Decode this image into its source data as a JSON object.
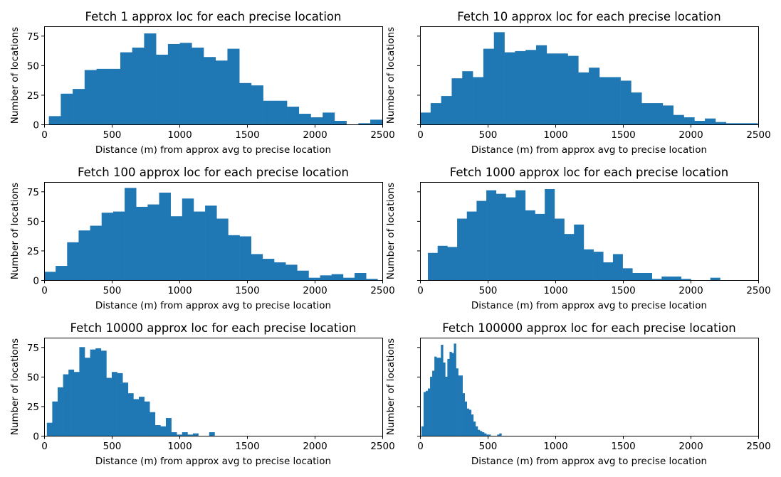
{
  "figure": {
    "bar_color": "#1f77b4",
    "background": "#ffffff"
  },
  "chart_data": [
    {
      "type": "bar",
      "title": "Fetch 1 approx loc for each precise location",
      "xlabel": "Distance (m) from approx avg to precise location",
      "ylabel": "Number of locations",
      "xlim": [
        0,
        2500
      ],
      "ylim": [
        0,
        83
      ],
      "xticks": [
        "0",
        "500",
        "1000",
        "1500",
        "2000",
        "2500"
      ],
      "yticks": [
        "0",
        "25",
        "50",
        "75"
      ],
      "y_tick_labels_shown": true,
      "bin_width": 88,
      "bins_start": [
        35,
        123,
        211,
        299,
        387,
        475,
        563,
        651,
        739,
        827,
        915,
        1003,
        1091,
        1179,
        1267,
        1355,
        1443,
        1531,
        1619,
        1707,
        1795,
        1883,
        1971,
        2059,
        2147,
        2235,
        2323,
        2411
      ],
      "values": [
        7,
        26,
        30,
        46,
        47,
        47,
        61,
        65,
        77,
        59,
        68,
        69,
        65,
        57,
        54,
        64,
        35,
        33,
        20,
        20,
        15,
        9,
        6,
        10,
        3,
        0,
        1,
        4
      ]
    },
    {
      "type": "bar",
      "title": "Fetch 10 approx loc for each precise location",
      "xlabel": "Distance (m) from approx avg to precise location",
      "ylabel": "Number of locations",
      "xlim": [
        0,
        2500
      ],
      "ylim": [
        0,
        83
      ],
      "xticks": [
        "0",
        "500",
        "1000",
        "1500",
        "2000",
        "2500"
      ],
      "yticks": [
        "0",
        "25",
        "50",
        "75"
      ],
      "y_tick_labels_shown": false,
      "bin_width": 78,
      "bins_start": [
        0,
        78,
        156,
        234,
        312,
        390,
        468,
        546,
        624,
        702,
        780,
        858,
        936,
        1014,
        1092,
        1170,
        1248,
        1326,
        1404,
        1482,
        1560,
        1638,
        1716,
        1794,
        1872,
        1950,
        2028,
        2106,
        2184,
        2262,
        2340,
        2418
      ],
      "values": [
        10,
        18,
        24,
        39,
        45,
        40,
        64,
        78,
        61,
        62,
        63,
        67,
        60,
        60,
        58,
        44,
        48,
        40,
        40,
        37,
        27,
        18,
        18,
        16,
        8,
        6,
        3,
        5,
        2,
        1,
        1,
        1
      ]
    },
    {
      "type": "bar",
      "title": "Fetch 100 approx loc for each precise location",
      "xlabel": "Distance (m) from approx avg to precise location",
      "ylabel": "Number of locations",
      "xlim": [
        0,
        2500
      ],
      "ylim": [
        0,
        83
      ],
      "xticks": [
        "0",
        "500",
        "1000",
        "1500",
        "2000",
        "2500"
      ],
      "yticks": [
        "0",
        "25",
        "50",
        "75"
      ],
      "y_tick_labels_shown": true,
      "bin_width": 85,
      "bins_start": [
        0,
        85,
        170,
        255,
        340,
        425,
        510,
        595,
        680,
        765,
        850,
        935,
        1020,
        1105,
        1190,
        1275,
        1360,
        1445,
        1530,
        1615,
        1700,
        1785,
        1870,
        1955,
        2040,
        2125,
        2210,
        2295,
        2380
      ],
      "values": [
        7,
        12,
        32,
        42,
        46,
        57,
        58,
        78,
        62,
        64,
        74,
        54,
        69,
        58,
        63,
        52,
        38,
        37,
        22,
        18,
        15,
        13,
        8,
        2,
        4,
        5,
        2,
        6,
        1
      ]
    },
    {
      "type": "bar",
      "title": "Fetch 1000 approx loc for each precise location",
      "xlabel": "Distance (m) from approx avg to precise location",
      "ylabel": "Number of locations",
      "xlim": [
        0,
        2500
      ],
      "ylim": [
        0,
        83
      ],
      "xticks": [
        "0",
        "500",
        "1000",
        "1500",
        "2000",
        "2500"
      ],
      "yticks": [
        "0",
        "25",
        "50",
        "75"
      ],
      "y_tick_labels_shown": false,
      "bin_width": 72,
      "bins_start": [
        58,
        130,
        202,
        274,
        346,
        418,
        490,
        562,
        634,
        706,
        778,
        850,
        922,
        994,
        1066,
        1138,
        1210,
        1282,
        1354,
        1426,
        1498,
        1570,
        1642,
        1714,
        1786,
        1858,
        1930,
        2002,
        2074,
        2146
      ],
      "values": [
        23,
        29,
        28,
        52,
        58,
        67,
        76,
        73,
        70,
        76,
        59,
        56,
        77,
        52,
        39,
        47,
        26,
        24,
        15,
        22,
        10,
        6,
        6,
        1,
        3,
        3,
        1,
        0,
        0,
        2
      ]
    },
    {
      "type": "bar",
      "title": "Fetch 10000 approx loc for each precise location",
      "xlabel": "Distance (m) from approx avg to precise location",
      "ylabel": "Number of locations",
      "xlim": [
        0,
        2500
      ],
      "ylim": [
        0,
        83
      ],
      "xticks": [
        "0",
        "500",
        "1000",
        "1500",
        "2000",
        "2500"
      ],
      "yticks": [
        "0",
        "25",
        "50",
        "75"
      ],
      "y_tick_labels_shown": true,
      "bin_width": 40,
      "bins_start": [
        20,
        60,
        100,
        140,
        180,
        220,
        260,
        300,
        340,
        380,
        420,
        460,
        500,
        540,
        580,
        620,
        660,
        700,
        740,
        780,
        820,
        860,
        900,
        940,
        980,
        1020,
        1060,
        1100,
        1140,
        1180,
        1220,
        1260,
        1300,
        1340
      ],
      "values": [
        11,
        29,
        41,
        52,
        56,
        54,
        75,
        66,
        73,
        74,
        72,
        49,
        54,
        53,
        45,
        36,
        31,
        33,
        29,
        20,
        9,
        8,
        15,
        3,
        1,
        3,
        1,
        2,
        0,
        0,
        3,
        0,
        0,
        0
      ]
    },
    {
      "type": "bar",
      "title": "Fetch 100000 approx loc for each precise location",
      "xlabel": "Distance (m) from approx avg to precise location",
      "ylabel": "Number of locations",
      "xlim": [
        0,
        2500
      ],
      "ylim": [
        0,
        83
      ],
      "xticks": [
        "0",
        "500",
        "1000",
        "1500",
        "2000",
        "2500"
      ],
      "yticks": [
        "0",
        "25",
        "50",
        "75"
      ],
      "y_tick_labels_shown": false,
      "bin_width": 16,
      "bins_start": [
        10,
        26,
        42,
        58,
        74,
        90,
        106,
        122,
        138,
        154,
        170,
        186,
        202,
        218,
        234,
        250,
        266,
        282,
        298,
        314,
        330,
        346,
        362,
        378,
        394,
        410,
        426,
        442,
        458,
        474,
        490,
        506,
        522,
        538,
        554,
        570,
        586
      ],
      "values": [
        8,
        37,
        38,
        40,
        50,
        55,
        67,
        66,
        66,
        77,
        62,
        50,
        65,
        71,
        70,
        78,
        57,
        51,
        51,
        36,
        29,
        23,
        22,
        18,
        12,
        8,
        5,
        4,
        3,
        2,
        1,
        1,
        0,
        0,
        0,
        1,
        2
      ]
    }
  ]
}
